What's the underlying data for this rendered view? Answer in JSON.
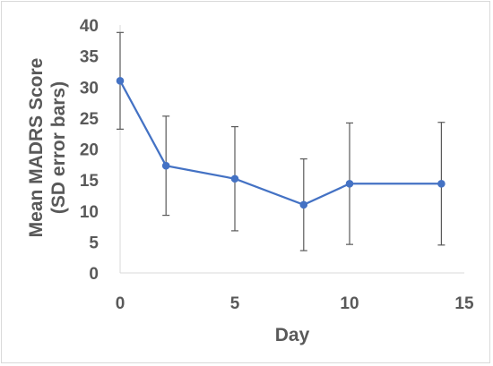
{
  "chart_data": {
    "type": "line",
    "title": "",
    "xlabel": "Day",
    "ylabel_lines": [
      "Mean MADRS Score",
      "(SD error bars)"
    ],
    "xlim": [
      0,
      15
    ],
    "ylim": [
      0,
      40
    ],
    "x_ticks": [
      0,
      5,
      10,
      15
    ],
    "y_ticks": [
      0,
      5,
      10,
      15,
      20,
      25,
      30,
      35,
      40
    ],
    "grid": false,
    "series": [
      {
        "color": "#4472c4",
        "points": [
          {
            "x": 0,
            "y": 31.0,
            "sd": 7.8
          },
          {
            "x": 2,
            "y": 17.3,
            "sd": 8.0
          },
          {
            "x": 5,
            "y": 15.2,
            "sd": 8.4
          },
          {
            "x": 8,
            "y": 11.0,
            "sd": 7.4
          },
          {
            "x": 10,
            "y": 14.4,
            "sd": 9.8
          },
          {
            "x": 14,
            "y": 14.4,
            "sd": 9.9
          }
        ]
      }
    ],
    "axis_color": "#d9d9d9",
    "errorbar_color": "#595959"
  }
}
